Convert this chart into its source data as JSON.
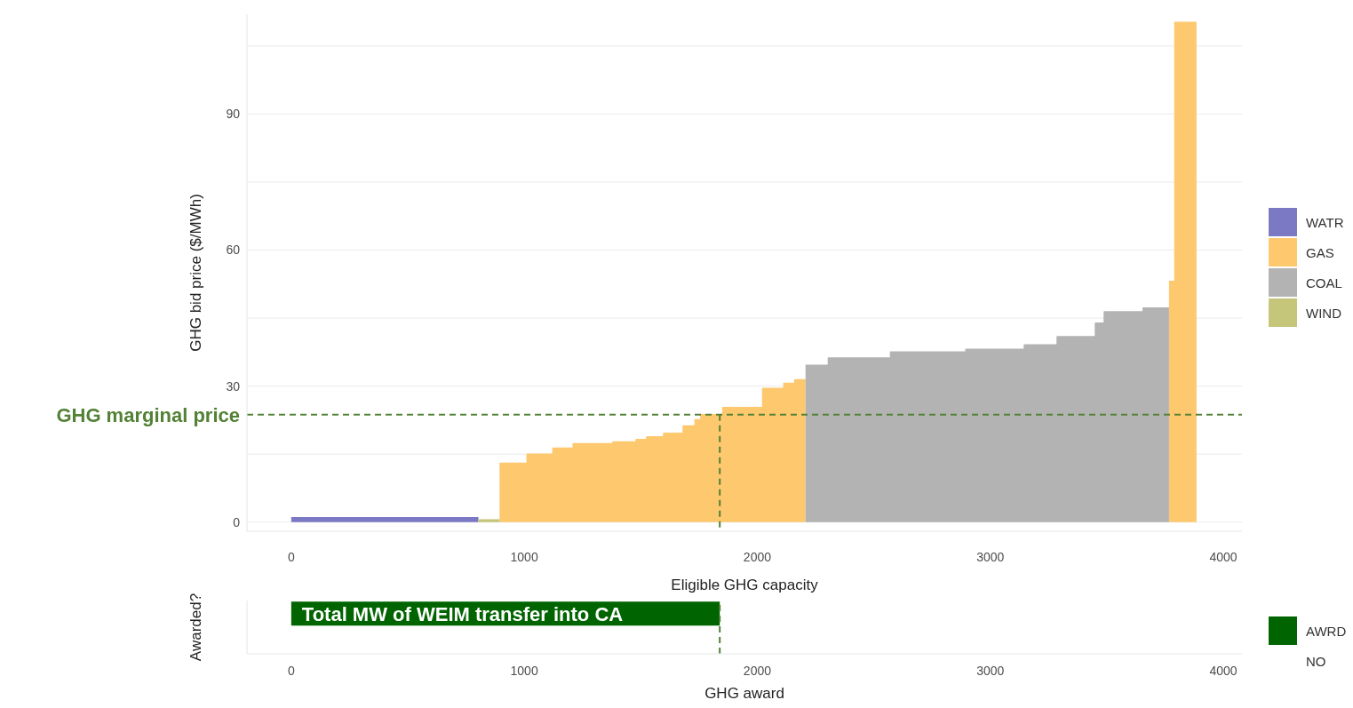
{
  "chart_data": [
    {
      "type": "area",
      "ylabel": "GHG bid price ($/MWh)",
      "xlabel": "Eligible GHG capacity",
      "xlim": [
        -190,
        4080
      ],
      "ylim": [
        -2,
        112
      ],
      "xticks": [
        0,
        1000,
        2000,
        3000,
        4000
      ],
      "yticks": [
        0,
        {
          "value": 15,
          "label": null
        },
        30,
        {
          "value": 45,
          "label": null
        },
        60,
        {
          "value": 75,
          "label": null
        },
        90,
        {
          "value": 105,
          "label": null
        }
      ],
      "grid": "y",
      "legend": "right",
      "series": [
        {
          "name": "WATR",
          "color": "#7b78c4",
          "x": [
            0,
            803
          ],
          "values": [
            1,
            1
          ]
        },
        {
          "name": "GAS",
          "color": "#fdc86e",
          "x": [
            894,
            1012,
            1012,
            1123,
            1123,
            1210,
            1210,
            1380,
            1380,
            1480,
            1480,
            1526,
            1526,
            1598,
            1598,
            1682,
            1682,
            1733,
            1733,
            1758,
            1758,
            1852,
            1852,
            2023,
            2023,
            2114,
            2114,
            2161,
            2161,
            2207
          ],
          "values": [
            13,
            13,
            15,
            15,
            16.3,
            16.3,
            17.3,
            17.3,
            17.7,
            17.7,
            18.2,
            18.2,
            18.8,
            18.8,
            19.6,
            19.6,
            21.2,
            21.2,
            22.6,
            22.6,
            23.7,
            23.7,
            25.3,
            25.3,
            29.5,
            29.5,
            30.6,
            30.6,
            31.4,
            31.4
          ]
        },
        {
          "color": "#fdc86e",
          "x": [
            3767,
            3792,
            3792,
            3885
          ],
          "values": [
            53.1,
            53.1,
            110.2,
            110.2
          ]
        },
        {
          "name": "COAL",
          "color": "#b3b3b3",
          "x": [
            2207,
            2305,
            2305,
            2572,
            2572,
            2895,
            2895,
            3146,
            3146,
            3287,
            3287,
            3451,
            3451,
            3489,
            3489,
            3656,
            3656,
            3767
          ],
          "values": [
            34.6,
            34.6,
            36.2,
            36.2,
            37.5,
            37.5,
            38.1,
            38.1,
            39.1,
            39.1,
            40.9,
            40.9,
            43.9,
            43.9,
            46.4,
            46.4,
            47.2,
            47.2
          ]
        },
        {
          "name": "WIND",
          "color": "#c6c67a",
          "x": [
            803,
            894
          ],
          "values": [
            0.5,
            0.5
          ]
        }
      ],
      "ref_lines": [
        {
          "axis": "y",
          "value": 23.7,
          "label": "GHG marginal price",
          "color": "#538135",
          "line_style": "dashed"
        },
        {
          "axis": "x",
          "value": 1839,
          "color": "#538135",
          "line_style": "dashed"
        }
      ]
    },
    {
      "type": "bar",
      "orientation": "horizontal",
      "xlabel": "GHG award",
      "ylabel": "Awarded?",
      "categories": [
        null
      ],
      "xlim": [
        -190,
        4080
      ],
      "xticks": [
        0,
        1000,
        2000,
        3000,
        4000
      ],
      "legend": "right",
      "series": [
        {
          "name": "AWRD",
          "color": "#006400",
          "values": [
            1839
          ]
        },
        {
          "name": "NO",
          "values": [
            null
          ]
        }
      ],
      "annotations": [
        "Total MW of WEIM transfer into CA"
      ],
      "ref_lines": [
        {
          "axis": "x",
          "value": 1839,
          "color": "#538135",
          "line_style": "dashed"
        }
      ]
    }
  ]
}
